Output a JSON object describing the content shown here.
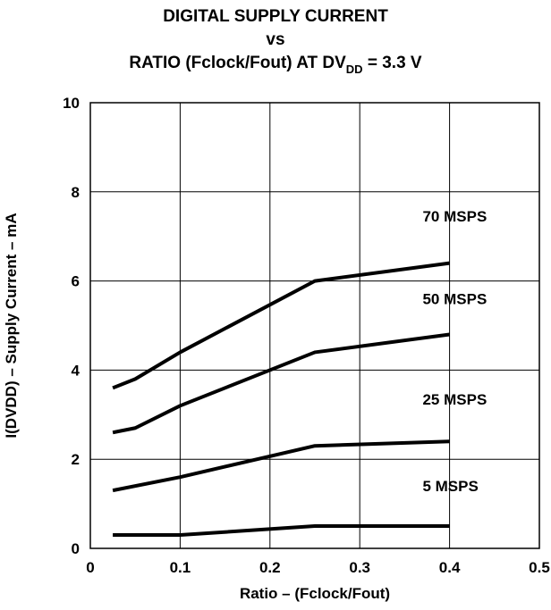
{
  "chart_data": {
    "type": "line",
    "title": {
      "line1": "DIGITAL SUPPLY CURRENT",
      "line2": "vs",
      "line3_prefix": "RATIO (Fclock/Fout) AT DV",
      "line3_sub": "DD",
      "line3_suffix": " = 3.3 V"
    },
    "xlabel": "Ratio – (Fclock/Fout)",
    "ylabel": "I(DVDD) – Supply Current – mA",
    "xlim": [
      0,
      0.5
    ],
    "ylim": [
      0,
      10
    ],
    "x_ticks": [
      {
        "value": 0,
        "label": "0"
      },
      {
        "value": 0.1,
        "label": "0.1"
      },
      {
        "value": 0.2,
        "label": "0.2"
      },
      {
        "value": 0.3,
        "label": "0.3"
      },
      {
        "value": 0.4,
        "label": "0.4"
      },
      {
        "value": 0.5,
        "label": "0.5"
      }
    ],
    "y_ticks": [
      {
        "value": 0,
        "label": "0"
      },
      {
        "value": 2,
        "label": "2"
      },
      {
        "value": 4,
        "label": "4"
      },
      {
        "value": 6,
        "label": "6"
      },
      {
        "value": 8,
        "label": "8"
      },
      {
        "value": 10,
        "label": "10"
      }
    ],
    "grid": true,
    "series": [
      {
        "name": "70 MSPS",
        "x": [
          0.025,
          0.05,
          0.1,
          0.25,
          0.4
        ],
        "y": [
          3.6,
          3.8,
          4.4,
          6.0,
          6.4
        ],
        "label_at": [
          0.37,
          7.45
        ]
      },
      {
        "name": "50 MSPS",
        "x": [
          0.025,
          0.05,
          0.1,
          0.25,
          0.4
        ],
        "y": [
          2.6,
          2.7,
          3.2,
          4.4,
          4.8
        ],
        "label_at": [
          0.37,
          5.6
        ]
      },
      {
        "name": "25 MSPS",
        "x": [
          0.025,
          0.1,
          0.25,
          0.4
        ],
        "y": [
          1.3,
          1.6,
          2.3,
          2.4
        ],
        "label_at": [
          0.37,
          3.35
        ]
      },
      {
        "name": "5 MSPS",
        "x": [
          0.025,
          0.1,
          0.25,
          0.4
        ],
        "y": [
          0.3,
          0.3,
          0.5,
          0.5
        ],
        "label_at": [
          0.37,
          1.4
        ]
      }
    ],
    "line_color": "#000000"
  }
}
